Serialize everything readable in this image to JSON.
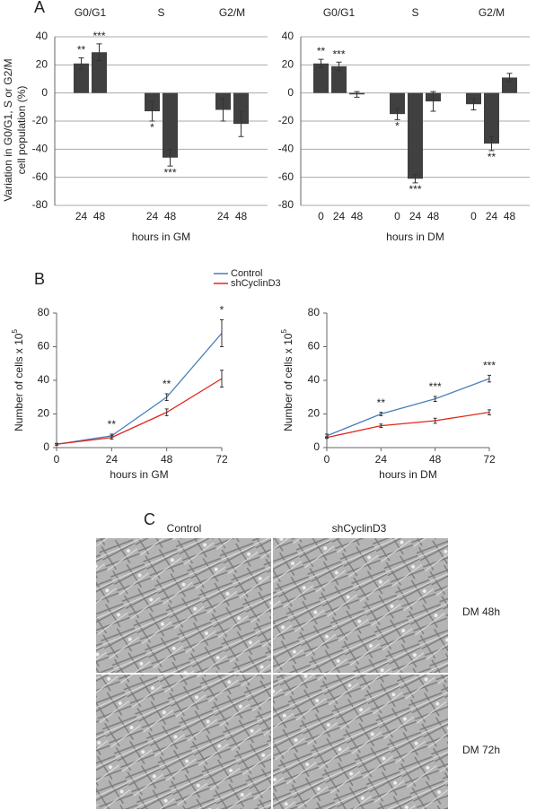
{
  "panel_labels": [
    "A",
    "B"
  ],
  "chart_data": [
    {
      "type": "bar",
      "color": "#404040",
      "grid": true,
      "ylim": [
        -80,
        40
      ],
      "yticks": [
        -80,
        -60,
        -40,
        -20,
        0,
        20,
        40
      ],
      "xlabel": "hours in GM",
      "ylabel": [
        "Variation in G0/G1, S or G2/M",
        "cell population (%)"
      ],
      "groups": [
        {
          "name": "G0/G1",
          "categories": [
            "24",
            "48"
          ],
          "values": [
            21,
            29
          ],
          "errors": [
            4,
            6
          ],
          "significance": [
            "**",
            "***"
          ]
        },
        {
          "name": "S",
          "categories": [
            "24",
            "48"
          ],
          "values": [
            -13,
            -46
          ],
          "errors": [
            7,
            6
          ],
          "significance": [
            "*",
            "***"
          ]
        },
        {
          "name": "G2/M",
          "categories": [
            "24",
            "48"
          ],
          "values": [
            -12,
            -22
          ],
          "errors": [
            8,
            9
          ],
          "significance": [
            null,
            null
          ]
        }
      ]
    },
    {
      "type": "bar",
      "color": "#404040",
      "grid": true,
      "ylim": [
        -80,
        40
      ],
      "yticks": [
        -80,
        -60,
        -40,
        -20,
        0,
        20,
        40
      ],
      "xlabel": "hours in DM",
      "groups": [
        {
          "name": "G0/G1",
          "categories": [
            "0",
            "24",
            "48"
          ],
          "values": [
            21,
            19,
            -1
          ],
          "errors": [
            3,
            3,
            2
          ],
          "significance": [
            "**",
            "***",
            null
          ]
        },
        {
          "name": "S",
          "categories": [
            "0",
            "24",
            "48"
          ],
          "values": [
            -15,
            -61,
            -6
          ],
          "errors": [
            4,
            3,
            7
          ],
          "significance": [
            "*",
            "***",
            null
          ]
        },
        {
          "name": "G2/M",
          "categories": [
            "0",
            "24",
            "48"
          ],
          "values": [
            -8,
            -36,
            11
          ],
          "errors": [
            4,
            5,
            3
          ],
          "significance": [
            null,
            "**",
            null
          ]
        }
      ]
    },
    {
      "type": "line",
      "x": [
        0,
        24,
        48,
        72
      ],
      "xlim": [
        0,
        72
      ],
      "xticks": [
        0,
        24,
        48,
        72
      ],
      "ylim": [
        0,
        80
      ],
      "yticks": [
        0,
        20,
        40,
        60,
        80
      ],
      "xlabel": "hours in GM",
      "ylabel": "Number of cells x 10",
      "ylabel_exponent": "5",
      "series": [
        {
          "name": "Control",
          "color": "#4a7ebb",
          "values": [
            2,
            7,
            30,
            68
          ],
          "errors": [
            0.5,
            1,
            2,
            8
          ],
          "significance": [
            null,
            "**",
            "**",
            "*"
          ]
        },
        {
          "name": "shCyclinD3",
          "color": "#e3261c",
          "values": [
            2,
            6,
            21,
            41
          ],
          "errors": [
            0.5,
            1,
            2,
            5
          ]
        }
      ]
    },
    {
      "type": "line",
      "x": [
        0,
        24,
        48,
        72
      ],
      "xlim": [
        0,
        72
      ],
      "xticks": [
        0,
        24,
        48,
        72
      ],
      "ylim": [
        0,
        80
      ],
      "yticks": [
        0,
        20,
        40,
        60,
        80
      ],
      "xlabel": "hours in DM",
      "ylabel": "Number of cells x 10",
      "ylabel_exponent": "5",
      "series": [
        {
          "color": "#4a7ebb",
          "values": [
            7,
            20,
            29,
            41
          ],
          "errors": [
            1,
            1,
            1.5,
            2
          ],
          "significance": [
            null,
            "**",
            "***",
            "***"
          ]
        },
        {
          "color": "#e3261c",
          "values": [
            6,
            13,
            16,
            21
          ],
          "errors": [
            0.5,
            1,
            1.5,
            1.5
          ]
        }
      ]
    }
  ],
  "panel_c": {
    "label": "C",
    "columns": [
      "Control",
      "shCyclinD3"
    ],
    "rows": [
      "DM 48h",
      "DM 72h"
    ]
  }
}
